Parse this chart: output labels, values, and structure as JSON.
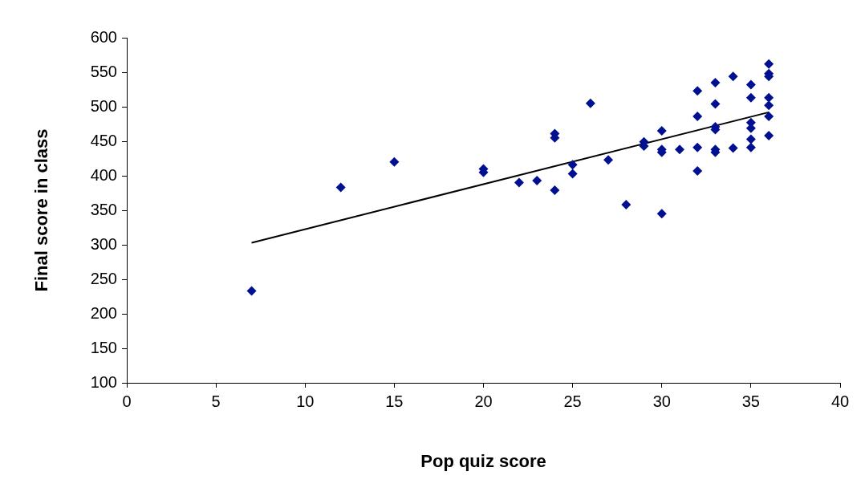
{
  "chart_data": {
    "type": "scatter",
    "xlabel": "Pop quiz score",
    "ylabel": "Final score in class",
    "xlim": [
      0,
      40
    ],
    "xticks": [
      0,
      5,
      10,
      15,
      20,
      25,
      30,
      35,
      40
    ],
    "ylim": [
      100,
      600
    ],
    "yticks": [
      100,
      150,
      200,
      250,
      300,
      350,
      400,
      450,
      500,
      550,
      600
    ],
    "grid": false,
    "series": [
      {
        "marker": "diamond",
        "color": "#001090",
        "x": [
          7,
          12,
          15,
          20,
          20,
          22,
          23,
          24,
          24,
          24,
          25,
          25,
          26,
          27,
          28,
          29,
          29,
          30,
          30,
          30,
          30,
          31,
          32,
          32,
          32,
          32,
          33,
          33,
          33,
          33,
          33,
          33,
          34,
          34,
          35,
          35,
          35,
          35,
          35,
          35,
          36,
          36,
          36,
          36,
          36,
          36,
          36
        ],
        "values": [
          233,
          383,
          420,
          410,
          405,
          390,
          393,
          461,
          455,
          379,
          416,
          403,
          505,
          423,
          358,
          449,
          443,
          465,
          438,
          434,
          345,
          438,
          523,
          486,
          441,
          407,
          535,
          504,
          471,
          467,
          438,
          434,
          544,
          440,
          532,
          513,
          477,
          469,
          453,
          441,
          562,
          548,
          544,
          513,
          502,
          486,
          458
        ]
      },
      {
        "type": "line",
        "marker": "none",
        "color": "#000000",
        "x": [
          7,
          36
        ],
        "values": [
          303,
          492
        ]
      }
    ]
  }
}
